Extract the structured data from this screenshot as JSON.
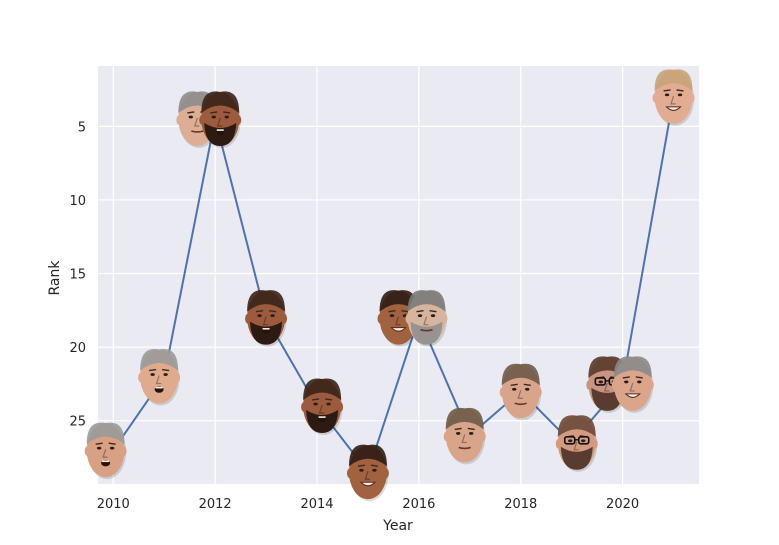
{
  "chart_data": {
    "type": "line",
    "xlabel": "Year",
    "ylabel": "Rank",
    "xlim": [
      2009.7,
      2021.5
    ],
    "ylim": [
      29.3,
      0.9
    ],
    "y_inverted": true,
    "grid": true,
    "background": "#eaeaf2",
    "line_color": "#4c72b0",
    "x_ticks": [
      2010,
      2012,
      2014,
      2016,
      2018,
      2020
    ],
    "y_ticks": [
      5,
      10,
      15,
      20,
      25
    ],
    "points": [
      {
        "x": 2010,
        "y": 27
      },
      {
        "x": 2011,
        "y": 22
      },
      {
        "x": 2012,
        "y": 4.5
      },
      {
        "x": 2013,
        "y": 18
      },
      {
        "x": 2014,
        "y": 24
      },
      {
        "x": 2015,
        "y": 28.5
      },
      {
        "x": 2016,
        "y": 18
      },
      {
        "x": 2017,
        "y": 26
      },
      {
        "x": 2018,
        "y": 23
      },
      {
        "x": 2019,
        "y": 26.5
      },
      {
        "x": 2020,
        "y": 22.5
      },
      {
        "x": 2021,
        "y": 3
      }
    ],
    "faces": [
      {
        "x": 2010,
        "y": 27,
        "skin": "#d9a184",
        "hair": "#9a9a9a",
        "dx": -0.15,
        "mouth": "open",
        "beard": "none",
        "glasses": false
      },
      {
        "x": 2011,
        "y": 22,
        "skin": "#e0aa8c",
        "hair": "#9a9a9a",
        "dx": -0.1,
        "mouth": "open",
        "beard": "none",
        "glasses": false
      },
      {
        "x": 2012,
        "y": 4.5,
        "skin": "#dcae94",
        "hair": "#8d8d8d",
        "dx": -0.35,
        "mouth": "closed",
        "beard": "none",
        "glasses": false
      },
      {
        "x": 2012,
        "y": 4.5,
        "skin": "#9b5b3c",
        "hair": "#3a2418",
        "dx": 0.1,
        "mouth": "open",
        "beard": "full",
        "glasses": false
      },
      {
        "x": 2013,
        "y": 18,
        "skin": "#9b5b3c",
        "hair": "#3a2418",
        "dx": 0,
        "mouth": "open",
        "beard": "full",
        "glasses": false
      },
      {
        "x": 2014,
        "y": 24,
        "skin": "#9b5b3c",
        "hair": "#3a2418",
        "dx": 0.1,
        "mouth": "open",
        "beard": "full",
        "glasses": false
      },
      {
        "x": 2015,
        "y": 28.5,
        "skin": "#a0623f",
        "hair": "#2e1d14",
        "dx": 0,
        "mouth": "smile",
        "beard": "none",
        "glasses": false
      },
      {
        "x": 2016,
        "y": 18,
        "skin": "#a0623f",
        "hair": "#2e1d14",
        "dx": -0.4,
        "mouth": "smile",
        "beard": "none",
        "glasses": false
      },
      {
        "x": 2016,
        "y": 18,
        "skin": "#d7b49e",
        "hair": "#7a7a7a",
        "dx": 0.15,
        "mouth": "closed",
        "beard": "grey",
        "glasses": false
      },
      {
        "x": 2017,
        "y": 26,
        "skin": "#d8a58a",
        "hair": "#6e5a48",
        "dx": -0.1,
        "mouth": "closed",
        "beard": "none",
        "glasses": false
      },
      {
        "x": 2018,
        "y": 23,
        "skin": "#d8a58a",
        "hair": "#6e5a48",
        "dx": 0,
        "mouth": "closed",
        "beard": "none",
        "glasses": false
      },
      {
        "x": 2019,
        "y": 26.5,
        "skin": "#d39c80",
        "hair": "#6b4a3a",
        "dx": 0.1,
        "mouth": "closed",
        "beard": "dark",
        "glasses": true
      },
      {
        "x": 2020,
        "y": 22.5,
        "skin": "#c99580",
        "hair": "#5a3a2a",
        "dx": -0.3,
        "mouth": "closed",
        "beard": "dark",
        "glasses": true
      },
      {
        "x": 2020,
        "y": 22.5,
        "skin": "#dba58c",
        "hair": "#8a8a8a",
        "dx": 0.2,
        "mouth": "smile",
        "beard": "none",
        "glasses": false
      },
      {
        "x": 2021,
        "y": 3,
        "skin": "#e2ac92",
        "hair": "#c8a47a",
        "dx": 0,
        "mouth": "smile",
        "beard": "none",
        "glasses": false
      }
    ]
  }
}
